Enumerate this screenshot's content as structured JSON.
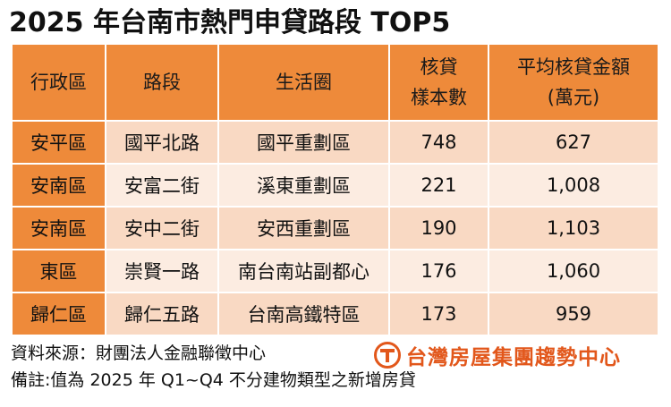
{
  "title": "2025 年台南市熱門申貸路段 TOP5",
  "table": {
    "headers": [
      {
        "line1": "行政區",
        "line2": ""
      },
      {
        "line1": "路段",
        "line2": ""
      },
      {
        "line1": "生活圈",
        "line2": ""
      },
      {
        "line1": "核貸",
        "line2": "樣本數"
      },
      {
        "line1": "平均核貸金額",
        "line2": "(萬元)"
      }
    ],
    "rows": [
      {
        "district": "安平區",
        "road": "國平北路",
        "area": "國平重劃區",
        "samples": "748",
        "avg": "627"
      },
      {
        "district": "安南區",
        "road": "安富二街",
        "area": "溪東重劃區",
        "samples": "221",
        "avg": "1,008"
      },
      {
        "district": "安南區",
        "road": "安中二街",
        "area": "安西重劃區",
        "samples": "190",
        "avg": "1,103"
      },
      {
        "district": "東區",
        "road": "崇賢一路",
        "area": "南台南站副都心",
        "samples": "176",
        "avg": "1,060"
      },
      {
        "district": "歸仁區",
        "road": "歸仁五路",
        "area": "台南高鐵特區",
        "samples": "173",
        "avg": "959"
      }
    ]
  },
  "footer": {
    "source": "資料來源：財團法人金融聯徵中心",
    "note": "備註:值為 2025 年 Q1~Q4 不分建物類型之新增房貸"
  },
  "brand": {
    "name": "台灣房屋集團趨勢中心",
    "logo_icon": "taiwan-realty-logo-icon",
    "color": "#e2571b"
  },
  "colors": {
    "header_bg": "#ee8a3a",
    "row_odd": "#f9d9c3",
    "row_even": "#fcece1"
  }
}
